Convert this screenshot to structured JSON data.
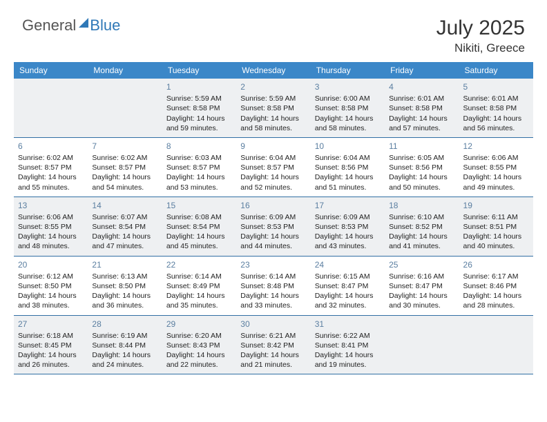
{
  "colors": {
    "header_bg": "#3b87c8",
    "border": "#2f6ea3",
    "shade_bg": "#eef0f2",
    "daynum": "#5a7ea0",
    "logo_blue": "#2f78b7",
    "text": "#222"
  },
  "logo": {
    "part1": "General",
    "part2": "Blue"
  },
  "title": "July 2025",
  "location": "Nikiti, Greece",
  "day_headers": [
    "Sunday",
    "Monday",
    "Tuesday",
    "Wednesday",
    "Thursday",
    "Friday",
    "Saturday"
  ],
  "weeks": [
    [
      {
        "blank": true
      },
      {
        "blank": true
      },
      {
        "n": "1",
        "sr": "5:59 AM",
        "ss": "8:58 PM",
        "dl": "14 hours and 59 minutes."
      },
      {
        "n": "2",
        "sr": "5:59 AM",
        "ss": "8:58 PM",
        "dl": "14 hours and 58 minutes."
      },
      {
        "n": "3",
        "sr": "6:00 AM",
        "ss": "8:58 PM",
        "dl": "14 hours and 58 minutes."
      },
      {
        "n": "4",
        "sr": "6:01 AM",
        "ss": "8:58 PM",
        "dl": "14 hours and 57 minutes."
      },
      {
        "n": "5",
        "sr": "6:01 AM",
        "ss": "8:58 PM",
        "dl": "14 hours and 56 minutes."
      }
    ],
    [
      {
        "n": "6",
        "sr": "6:02 AM",
        "ss": "8:57 PM",
        "dl": "14 hours and 55 minutes."
      },
      {
        "n": "7",
        "sr": "6:02 AM",
        "ss": "8:57 PM",
        "dl": "14 hours and 54 minutes."
      },
      {
        "n": "8",
        "sr": "6:03 AM",
        "ss": "8:57 PM",
        "dl": "14 hours and 53 minutes."
      },
      {
        "n": "9",
        "sr": "6:04 AM",
        "ss": "8:57 PM",
        "dl": "14 hours and 52 minutes."
      },
      {
        "n": "10",
        "sr": "6:04 AM",
        "ss": "8:56 PM",
        "dl": "14 hours and 51 minutes."
      },
      {
        "n": "11",
        "sr": "6:05 AM",
        "ss": "8:56 PM",
        "dl": "14 hours and 50 minutes."
      },
      {
        "n": "12",
        "sr": "6:06 AM",
        "ss": "8:55 PM",
        "dl": "14 hours and 49 minutes."
      }
    ],
    [
      {
        "n": "13",
        "sr": "6:06 AM",
        "ss": "8:55 PM",
        "dl": "14 hours and 48 minutes."
      },
      {
        "n": "14",
        "sr": "6:07 AM",
        "ss": "8:54 PM",
        "dl": "14 hours and 47 minutes."
      },
      {
        "n": "15",
        "sr": "6:08 AM",
        "ss": "8:54 PM",
        "dl": "14 hours and 45 minutes."
      },
      {
        "n": "16",
        "sr": "6:09 AM",
        "ss": "8:53 PM",
        "dl": "14 hours and 44 minutes."
      },
      {
        "n": "17",
        "sr": "6:09 AM",
        "ss": "8:53 PM",
        "dl": "14 hours and 43 minutes."
      },
      {
        "n": "18",
        "sr": "6:10 AM",
        "ss": "8:52 PM",
        "dl": "14 hours and 41 minutes."
      },
      {
        "n": "19",
        "sr": "6:11 AM",
        "ss": "8:51 PM",
        "dl": "14 hours and 40 minutes."
      }
    ],
    [
      {
        "n": "20",
        "sr": "6:12 AM",
        "ss": "8:50 PM",
        "dl": "14 hours and 38 minutes."
      },
      {
        "n": "21",
        "sr": "6:13 AM",
        "ss": "8:50 PM",
        "dl": "14 hours and 36 minutes."
      },
      {
        "n": "22",
        "sr": "6:14 AM",
        "ss": "8:49 PM",
        "dl": "14 hours and 35 minutes."
      },
      {
        "n": "23",
        "sr": "6:14 AM",
        "ss": "8:48 PM",
        "dl": "14 hours and 33 minutes."
      },
      {
        "n": "24",
        "sr": "6:15 AM",
        "ss": "8:47 PM",
        "dl": "14 hours and 32 minutes."
      },
      {
        "n": "25",
        "sr": "6:16 AM",
        "ss": "8:47 PM",
        "dl": "14 hours and 30 minutes."
      },
      {
        "n": "26",
        "sr": "6:17 AM",
        "ss": "8:46 PM",
        "dl": "14 hours and 28 minutes."
      }
    ],
    [
      {
        "n": "27",
        "sr": "6:18 AM",
        "ss": "8:45 PM",
        "dl": "14 hours and 26 minutes."
      },
      {
        "n": "28",
        "sr": "6:19 AM",
        "ss": "8:44 PM",
        "dl": "14 hours and 24 minutes."
      },
      {
        "n": "29",
        "sr": "6:20 AM",
        "ss": "8:43 PM",
        "dl": "14 hours and 22 minutes."
      },
      {
        "n": "30",
        "sr": "6:21 AM",
        "ss": "8:42 PM",
        "dl": "14 hours and 21 minutes."
      },
      {
        "n": "31",
        "sr": "6:22 AM",
        "ss": "8:41 PM",
        "dl": "14 hours and 19 minutes."
      },
      {
        "blank": true
      },
      {
        "blank": true
      }
    ]
  ],
  "labels": {
    "sunrise": "Sunrise: ",
    "sunset": "Sunset: ",
    "daylight": "Daylight: "
  }
}
